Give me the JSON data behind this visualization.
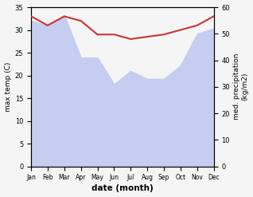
{
  "months": [
    "Jan",
    "Feb",
    "Mar",
    "Apr",
    "May",
    "Jun",
    "Jul",
    "Aug",
    "Sep",
    "Oct",
    "Nov",
    "Dec"
  ],
  "month_indices": [
    0,
    1,
    2,
    3,
    4,
    5,
    6,
    7,
    8,
    9,
    10,
    11
  ],
  "temperature": [
    33,
    31,
    33,
    32,
    29,
    29,
    28,
    28.5,
    29,
    30,
    31,
    33
  ],
  "precipitation": [
    55,
    53,
    57,
    41,
    41,
    31,
    36,
    33,
    33,
    38,
    50,
    52
  ],
  "temp_color": "#cc3333",
  "precip_fill_color": "#c5cdf0",
  "temp_ylim": [
    0,
    35
  ],
  "precip_ylim": [
    0,
    60
  ],
  "temp_yticks": [
    0,
    5,
    10,
    15,
    20,
    25,
    30,
    35
  ],
  "precip_yticks": [
    0,
    10,
    20,
    30,
    40,
    50,
    60
  ],
  "xlabel": "date (month)",
  "ylabel_left": "max temp (C)",
  "ylabel_right": "med. precipitation\n(kg/m2)",
  "bg_color": "#f5f5f5",
  "temp_linewidth": 1.5
}
